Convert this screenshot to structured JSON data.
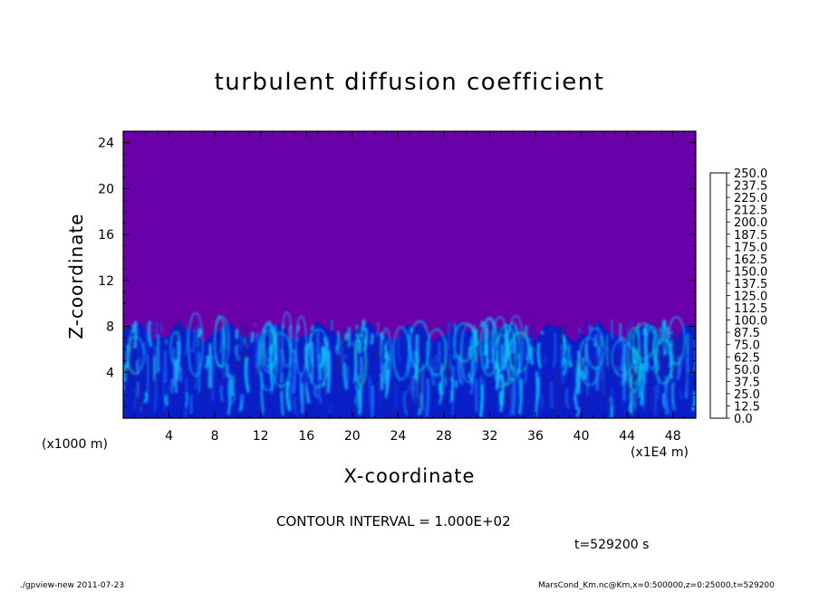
{
  "chart_data": {
    "type": "heatmap",
    "title": "turbulent diffusion coefficient",
    "xlabel": "X-coordinate",
    "ylabel": "Z-coordinate",
    "x_unit": "(x1E4 m)",
    "y_unit": "(x1000 m)",
    "xlim": [
      0,
      50
    ],
    "ylim": [
      0,
      25
    ],
    "x_ticks": [
      "4",
      "8",
      "12",
      "16",
      "20",
      "24",
      "28",
      "32",
      "36",
      "40",
      "44",
      "48"
    ],
    "y_ticks": [
      "4",
      "8",
      "12",
      "16",
      "20",
      "24"
    ],
    "x_tick_values": [
      4,
      8,
      12,
      16,
      20,
      24,
      28,
      32,
      36,
      40,
      44,
      48
    ],
    "y_tick_values": [
      4,
      8,
      12,
      16,
      20,
      24
    ],
    "colorbar": {
      "levels": [
        "0.0",
        "12.5",
        "25.0",
        "37.5",
        "50.0",
        "62.5",
        "75.0",
        "87.5",
        "100.0",
        "112.5",
        "125.0",
        "137.5",
        "150.0",
        "162.5",
        "175.0",
        "187.5",
        "200.0",
        "212.5",
        "225.0",
        "237.5",
        "250.0"
      ],
      "colors": [
        "#6a00a8",
        "#1f1f9a",
        "#0a1ec8",
        "#0a46e6",
        "#1478ff",
        "#1eb4ff",
        "#00d7ff",
        "#00e6c8",
        "#00d296",
        "#00d25a",
        "#00dc28",
        "#28e614",
        "#78e600",
        "#b4e600",
        "#e6e600",
        "#ffc800",
        "#ff9600",
        "#ff6400",
        "#ff3200",
        "#f01e3c",
        "#f08080"
      ]
    },
    "field_description_values": {
      "background_value": 0.0,
      "turbulent_layer_top_z": [
        6.5,
        8.5
      ],
      "max_in_layer": 87.5
    },
    "contour_interval": "CONTOUR INTERVAL = 1.000E+02",
    "time_label": "t=529200 s"
  },
  "footer": {
    "left": "./gpview-new  2011-07-23",
    "right": "MarsCond_Km.nc@Km,x=0:500000,z=0:25000,t=529200"
  }
}
